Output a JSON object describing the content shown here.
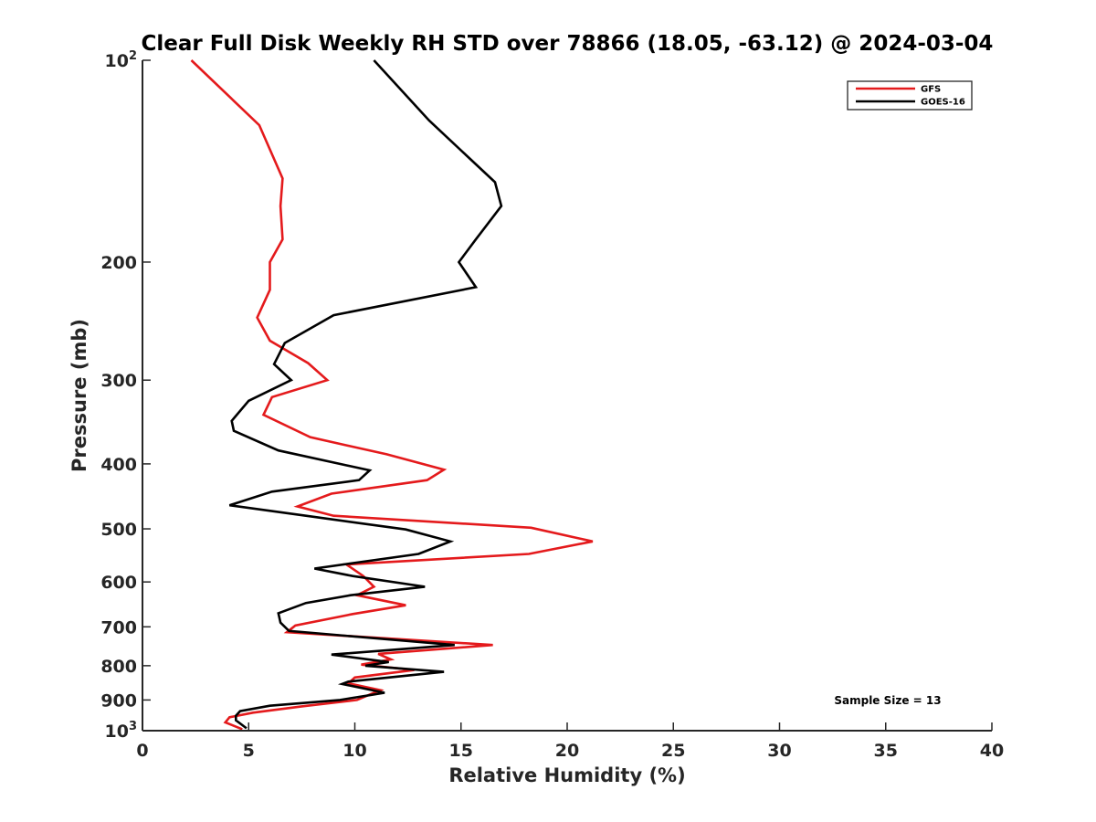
{
  "chart_data": {
    "type": "line",
    "title": "Clear Full Disk Weekly RH STD over 78866 (18.05, -63.12) @ 2024-03-04",
    "xlabel": "Relative Humidity (%)",
    "ylabel": "Pressure (mb)",
    "xlim": [
      0,
      40
    ],
    "ylim": [
      100,
      1000
    ],
    "y_scale": "log",
    "y_reversed": true,
    "x_ticks": [
      {
        "value": 0,
        "label": "0"
      },
      {
        "value": 5,
        "label": "5"
      },
      {
        "value": 10,
        "label": "10"
      },
      {
        "value": 15,
        "label": "15"
      },
      {
        "value": 20,
        "label": "20"
      },
      {
        "value": 25,
        "label": "25"
      },
      {
        "value": 30,
        "label": "30"
      },
      {
        "value": 35,
        "label": "35"
      },
      {
        "value": 40,
        "label": "40"
      }
    ],
    "y_ticks": [
      {
        "value": 100,
        "base": "10",
        "exp": "2"
      },
      {
        "value": 200,
        "label": "200"
      },
      {
        "value": 300,
        "label": "300"
      },
      {
        "value": 400,
        "label": "400"
      },
      {
        "value": 500,
        "label": "500"
      },
      {
        "value": 600,
        "label": "600"
      },
      {
        "value": 700,
        "label": "700"
      },
      {
        "value": 800,
        "label": "800"
      },
      {
        "value": 900,
        "label": "900"
      },
      {
        "value": 1000,
        "base": "10",
        "exp": "3"
      }
    ],
    "grid": false,
    "legend_position": "top-right",
    "annotation": "Sample Size = 13",
    "series": [
      {
        "name": "GFS",
        "color": "#e41a1c",
        "points": [
          [
            2.3,
            100
          ],
          [
            5.5,
            125
          ],
          [
            6.6,
            150
          ],
          [
            6.5,
            165
          ],
          [
            6.6,
            185
          ],
          [
            6.0,
            200
          ],
          [
            6.0,
            220
          ],
          [
            5.4,
            242
          ],
          [
            6.0,
            262
          ],
          [
            7.8,
            283
          ],
          [
            8.7,
            300
          ],
          [
            6.1,
            318
          ],
          [
            5.7,
            338
          ],
          [
            7.9,
            365
          ],
          [
            11.5,
            387
          ],
          [
            14.2,
            408
          ],
          [
            13.4,
            423
          ],
          [
            8.9,
            443
          ],
          [
            7.3,
            463
          ],
          [
            9.0,
            478
          ],
          [
            18.3,
            498
          ],
          [
            21.2,
            522
          ],
          [
            18.2,
            545
          ],
          [
            9.6,
            565
          ],
          [
            10.4,
            588
          ],
          [
            10.9,
            610
          ],
          [
            10.1,
            628
          ],
          [
            12.4,
            650
          ],
          [
            9.9,
            670
          ],
          [
            7.2,
            697
          ],
          [
            6.8,
            713
          ],
          [
            16.5,
            745
          ],
          [
            11.1,
            768
          ],
          [
            11.7,
            783
          ],
          [
            10.3,
            797
          ],
          [
            12.8,
            812
          ],
          [
            10.0,
            833
          ],
          [
            9.7,
            850
          ],
          [
            11.2,
            870
          ],
          [
            10.1,
            900
          ],
          [
            7.5,
            920
          ],
          [
            5.2,
            940
          ],
          [
            4.1,
            955
          ],
          [
            3.9,
            972
          ],
          [
            4.7,
            995
          ]
        ]
      },
      {
        "name": "GOES-16",
        "color": "#000000",
        "points": [
          [
            10.9,
            100
          ],
          [
            13.5,
            123
          ],
          [
            16.6,
            152
          ],
          [
            16.9,
            165
          ],
          [
            15.7,
            185
          ],
          [
            14.9,
            200
          ],
          [
            15.7,
            218
          ],
          [
            9.0,
            240
          ],
          [
            6.7,
            264
          ],
          [
            6.2,
            284
          ],
          [
            7.0,
            300
          ],
          [
            5.0,
            322
          ],
          [
            4.2,
            345
          ],
          [
            4.3,
            357
          ],
          [
            6.4,
            382
          ],
          [
            10.7,
            409
          ],
          [
            10.2,
            423
          ],
          [
            6.1,
            440
          ],
          [
            4.1,
            461
          ],
          [
            7.7,
            478
          ],
          [
            12.4,
            501
          ],
          [
            14.5,
            522
          ],
          [
            13.0,
            545
          ],
          [
            8.1,
            573
          ],
          [
            9.9,
            588
          ],
          [
            13.3,
            610
          ],
          [
            9.8,
            628
          ],
          [
            7.7,
            645
          ],
          [
            6.4,
            668
          ],
          [
            6.5,
            690
          ],
          [
            6.9,
            710
          ],
          [
            14.7,
            745
          ],
          [
            8.9,
            770
          ],
          [
            11.6,
            790
          ],
          [
            10.5,
            800
          ],
          [
            14.2,
            817
          ],
          [
            9.7,
            845
          ],
          [
            9.4,
            852
          ],
          [
            11.4,
            878
          ],
          [
            9.3,
            900
          ],
          [
            6.0,
            918
          ],
          [
            4.6,
            935
          ],
          [
            4.4,
            950
          ],
          [
            4.4,
            965
          ],
          [
            4.9,
            992
          ]
        ]
      }
    ]
  }
}
